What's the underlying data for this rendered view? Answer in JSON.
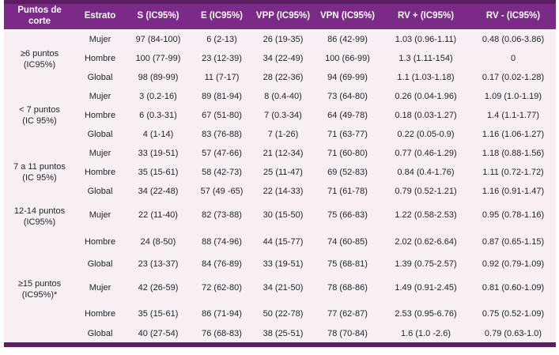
{
  "colors": {
    "header_bg": "#7B2B87",
    "border_dark": "#5B1E63",
    "body_bg": "#F8EFF5",
    "header_text": "#FFFFFF",
    "body_text": "#1F2128"
  },
  "table": {
    "columns": [
      "Puntos de corte",
      "Estrato",
      "S (IC95%)",
      "E (IC95%)",
      "VPP (IC95%)",
      "VPN (IC95%)",
      "RV + (IC95%)",
      "RV - (IC95%)"
    ],
    "groups": [
      {
        "label": "≥6 puntos",
        "label_sub": "(IC95%)",
        "rows": [
          {
            "stratum": "Mujer",
            "values": [
              "97 (84-100)",
              "6 (2-13)",
              "26 (19-35)",
              "86 (42-99)",
              "1.03 (0.96-1.11)",
              "0.48 (0.06-3.86)"
            ]
          },
          {
            "stratum": "Hombre",
            "values": [
              "100 (77-99)",
              "23 (12-39)",
              "34 (22-49)",
              "100 (66-99)",
              "1.3 (1.11-154)",
              "0"
            ]
          },
          {
            "stratum": "Global",
            "values": [
              "98 (89-99)",
              "11 (7-17)",
              "28 (22-36)",
              "94 (69-99)",
              "1.1 (1.03-1.18)",
              "0.17 (0.02-1.28)"
            ]
          }
        ]
      },
      {
        "label": "< 7 puntos",
        "label_sub": "(IC 95%)",
        "rows": [
          {
            "stratum": "Mujer",
            "values": [
              "3 (0.2-16)",
              "89 (81-94)",
              "8 (0.4-40)",
              "73 (64-80)",
              "0.26 (0.04-1.96)",
              "1.09 (1.0-1.19)"
            ]
          },
          {
            "stratum": "Hombre",
            "values": [
              "6 (0.3-31)",
              "67 (51-80)",
              "7 (0.3-34)",
              "64 (49-78)",
              "0.18 (0.03-1.27)",
              "1.4 (1.1-1.77)"
            ]
          },
          {
            "stratum": "Global",
            "values": [
              "4 (1-14)",
              "83 (76-88)",
              "7 (1-26)",
              "71 (63-77)",
              "0.22 (0.05-0.9)",
              "1.16 (1.06-1.27)"
            ]
          }
        ]
      },
      {
        "label": "7 a 11 puntos",
        "label_sub": "(IC 95%)",
        "rows": [
          {
            "stratum": "Mujer",
            "values": [
              "33 (19-51)",
              "57 (47-66)",
              "21 (12-34)",
              "71 (60-80)",
              "0.77 (0.46-1.29)",
              "1.18 (0.88-1.56)"
            ]
          },
          {
            "stratum": "Hombre",
            "values": [
              "35 (15-61)",
              "58 (42-73)",
              "25 (11-47)",
              "69 (52-83)",
              "0.84 (0.4-1.76)",
              "1.11 (0.72-1.72)"
            ]
          },
          {
            "stratum": "Global",
            "values": [
              "34 (22-48)",
              "57 (49 -65)",
              "22 (14-33)",
              "71 (61-78)",
              "0.79 (0.52-1.21)",
              "1.16 (0.91-1.47)"
            ]
          }
        ]
      },
      {
        "label": "12-14 puntos",
        "label_sub": "(IC95%)",
        "rows": [
          {
            "stratum": "Mujer",
            "values": [
              "22 (11-40)",
              "82 (73-88)",
              "30 (15-50)",
              "75 (66-83)",
              "1.22 (0.58-2.53)",
              "0.95 (0.78-1.16)"
            ]
          },
          {
            "stratum": "Hombre",
            "values": [
              "24 (8-50)",
              "88 (74-96)",
              "44 (15-77)",
              "74 (60-85)",
              "2.02 (0.62-6.64)",
              "0.87 (0.65-1.15)"
            ]
          },
          {
            "stratum": "Global",
            "values": [
              "23 (13-37)",
              "84 (76-89)",
              "33 (19-51)",
              "75 (68-81)",
              "1.39 (0.75-2.57)",
              "0.92 (0.79-1.09)"
            ]
          }
        ]
      },
      {
        "label": "≥15 puntos",
        "label_sub": "(IC95%)*",
        "rows": [
          {
            "stratum": "Mujer",
            "values": [
              "42 (26-59)",
              "72 (62-80)",
              "34 (21-50)",
              "78 (68-86)",
              "1.49 (0.91-2.45)",
              "0.81 (0.60-1.09)"
            ]
          },
          {
            "stratum": "Hombre",
            "values": [
              "35 (15-61)",
              "86 (71-94)",
              "50 (22-78)",
              "77 (62-87)",
              "2.53 (0.95-6.76)",
              "0.75 (0.52-1.09)"
            ]
          },
          {
            "stratum": "Global",
            "values": [
              "40 (27-54)",
              "76 (68-83)",
              "38 (25-51)",
              "78 (70-84)",
              "1.6 (1.0 -2.6)",
              "0.79 (0.63-1.0)"
            ]
          }
        ]
      }
    ]
  }
}
